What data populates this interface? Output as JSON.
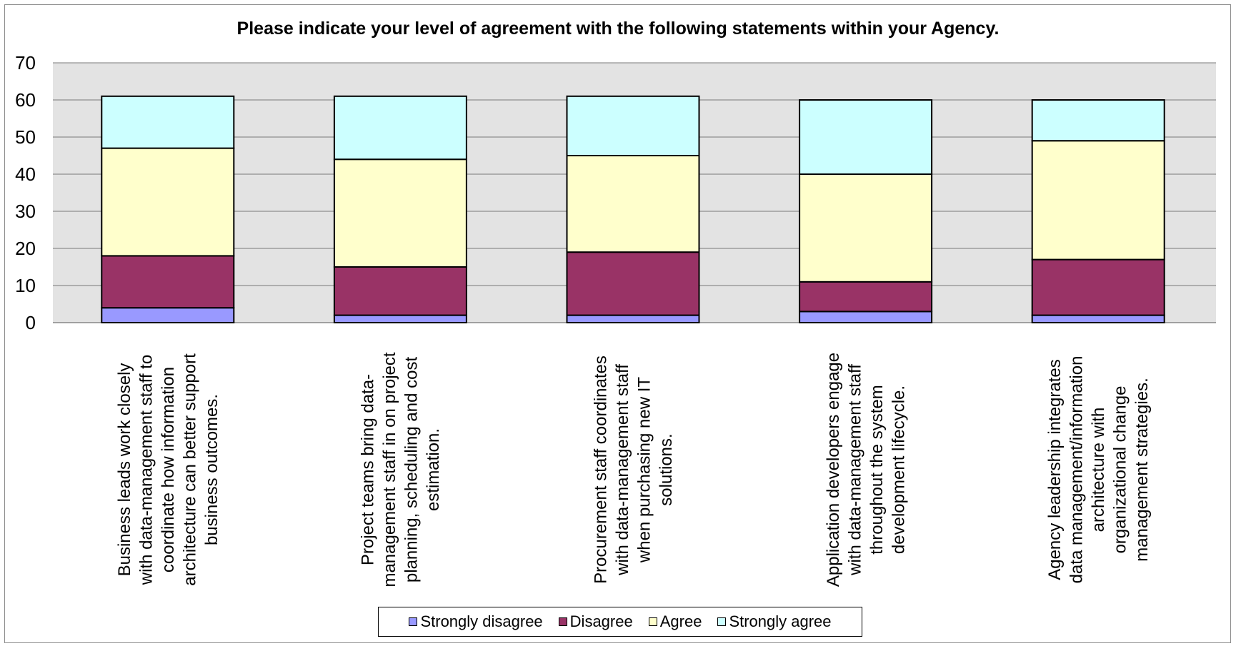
{
  "chart_data": {
    "type": "bar",
    "stacked": true,
    "title": "Please indicate your level of agreement with the following statements within your Agency.",
    "xlabel": "",
    "ylabel": "",
    "ylim": [
      0,
      70
    ],
    "yticks": [
      0,
      10,
      20,
      30,
      40,
      50,
      60,
      70
    ],
    "grid": true,
    "legend_position": "bottom",
    "categories": [
      [
        "Business leads work closely",
        "with data-management staff to",
        "coordinate how information",
        "architecture can better support",
        "business outcomes."
      ],
      [
        "Project teams bring data-",
        "management staff in on project",
        "planning, scheduling and cost",
        "estimation."
      ],
      [
        "Procurement staff coordinates",
        "with data-management staff",
        "when purchasing new IT",
        "solutions."
      ],
      [
        "Application developers engage",
        "with data-management staff",
        "throughout the system",
        "development lifecycle."
      ],
      [
        "Agency leadership integrates",
        "data management/information",
        "architecture with",
        "organizational change",
        "management strategies."
      ]
    ],
    "series": [
      {
        "name": "Strongly disagree",
        "color": "#9999ff",
        "values": [
          4,
          2,
          2,
          3,
          2
        ]
      },
      {
        "name": "Disagree",
        "color": "#993366",
        "values": [
          14,
          13,
          17,
          8,
          15
        ]
      },
      {
        "name": "Agree",
        "color": "#ffffcc",
        "values": [
          29,
          29,
          26,
          29,
          32
        ]
      },
      {
        "name": "Strongly agree",
        "color": "#ccffff",
        "values": [
          14,
          17,
          16,
          20,
          11
        ]
      }
    ]
  }
}
